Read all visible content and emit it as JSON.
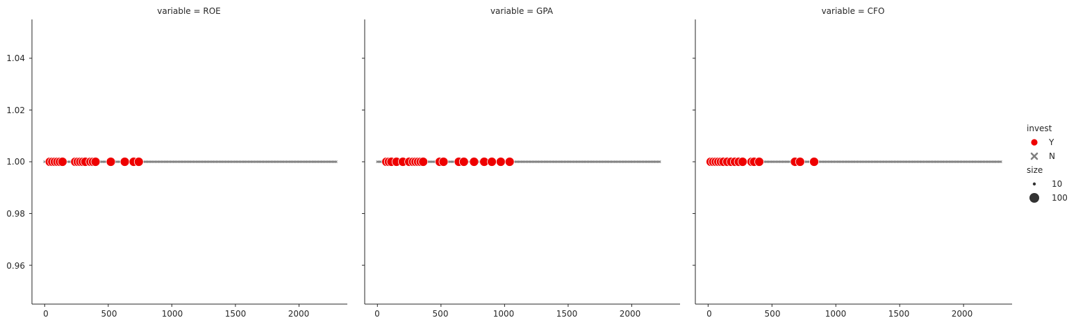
{
  "chart_data": {
    "type": "scatter",
    "facet_variable": "variable",
    "colors": {
      "Y": "#ee0000",
      "N": "#808080"
    },
    "legend": {
      "hue_title": "invest",
      "hue_items": [
        {
          "label": "Y",
          "marker": "circle",
          "color": "#ee0000"
        },
        {
          "label": "N",
          "marker": "x",
          "color": "#808080"
        }
      ],
      "size_title": "size",
      "size_items": [
        {
          "label": "10",
          "size": 10
        },
        {
          "label": "100",
          "size": 100
        }
      ],
      "placement": "right"
    },
    "xlim": [
      -100,
      2380
    ],
    "ylim": [
      0.945,
      1.055
    ],
    "x_ticks": [
      "0",
      "500",
      "1000",
      "1500",
      "2000"
    ],
    "y_ticks": [
      "0.96",
      "0.98",
      "1.00",
      "1.02",
      "1.04"
    ],
    "grid": false,
    "panels": [
      {
        "title": "variable = ROE",
        "Y": {
          "x": [
            40,
            60,
            80,
            100,
            120,
            140,
            240,
            260,
            280,
            300,
            320,
            360,
            380,
            400,
            520,
            630,
            700,
            740
          ],
          "y": 1.0
        },
        "N": {
          "x_range": [
            0,
            2300
          ],
          "step": 12,
          "y": 1.0
        }
      },
      {
        "title": "variable = GPA",
        "Y": {
          "x": [
            70,
            90,
            110,
            150,
            200,
            250,
            280,
            300,
            320,
            340,
            360,
            490,
            520,
            640,
            680,
            760,
            840,
            900,
            970,
            1040
          ],
          "y": 1.0
        },
        "N": {
          "x_range": [
            0,
            2220
          ],
          "step": 12,
          "y": 1.0
        }
      },
      {
        "title": "variable = CFO",
        "Y": {
          "x": [
            20,
            40,
            60,
            80,
            100,
            120,
            150,
            180,
            210,
            240,
            270,
            340,
            360,
            400,
            680,
            720,
            830
          ],
          "y": 1.0
        },
        "N": {
          "x_range": [
            0,
            2300
          ],
          "step": 12,
          "y": 1.0
        }
      }
    ]
  }
}
